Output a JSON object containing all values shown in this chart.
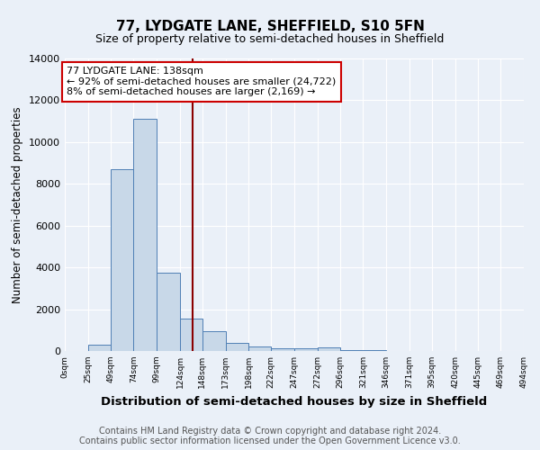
{
  "title": "77, LYDGATE LANE, SHEFFIELD, S10 5FN",
  "subtitle": "Size of property relative to semi-detached houses in Sheffield",
  "xlabel": "Distribution of semi-detached houses by size in Sheffield",
  "ylabel": "Number of semi-detached properties",
  "footnote1": "Contains HM Land Registry data © Crown copyright and database right 2024.",
  "footnote2": "Contains public sector information licensed under the Open Government Licence v3.0.",
  "bar_edges": [
    0,
    25,
    49,
    74,
    99,
    124,
    148,
    173,
    198,
    222,
    247,
    272,
    296,
    321,
    346,
    371,
    395,
    420,
    445,
    469,
    494
  ],
  "bar_heights": [
    0,
    310,
    8700,
    11100,
    3750,
    1550,
    950,
    390,
    230,
    130,
    110,
    170,
    60,
    30,
    0,
    0,
    0,
    0,
    0,
    0
  ],
  "bar_color": "#c8d8e8",
  "bar_edge_color": "#4f7fb5",
  "vline_x": 138,
  "vline_color": "#8b0000",
  "annotation_text": "77 LYDGATE LANE: 138sqm\n← 92% of semi-detached houses are smaller (24,722)\n8% of semi-detached houses are larger (2,169) →",
  "annotation_box_color": "#ffffff",
  "annotation_box_edge": "#cc0000",
  "ylim": [
    0,
    14000
  ],
  "yticks": [
    0,
    2000,
    4000,
    6000,
    8000,
    10000,
    12000,
    14000
  ],
  "xtick_labels": [
    "0sqm",
    "25sqm",
    "49sqm",
    "74sqm",
    "99sqm",
    "124sqm",
    "148sqm",
    "173sqm",
    "198sqm",
    "222sqm",
    "247sqm",
    "272sqm",
    "296sqm",
    "321sqm",
    "346sqm",
    "371sqm",
    "395sqm",
    "420sqm",
    "445sqm",
    "469sqm",
    "494sqm"
  ],
  "background_color": "#eaf0f8",
  "grid_color": "#ffffff",
  "title_fontsize": 11,
  "subtitle_fontsize": 9,
  "xlabel_fontsize": 9.5,
  "ylabel_fontsize": 8.5,
  "footnote_fontsize": 7,
  "annotation_fontsize": 8
}
